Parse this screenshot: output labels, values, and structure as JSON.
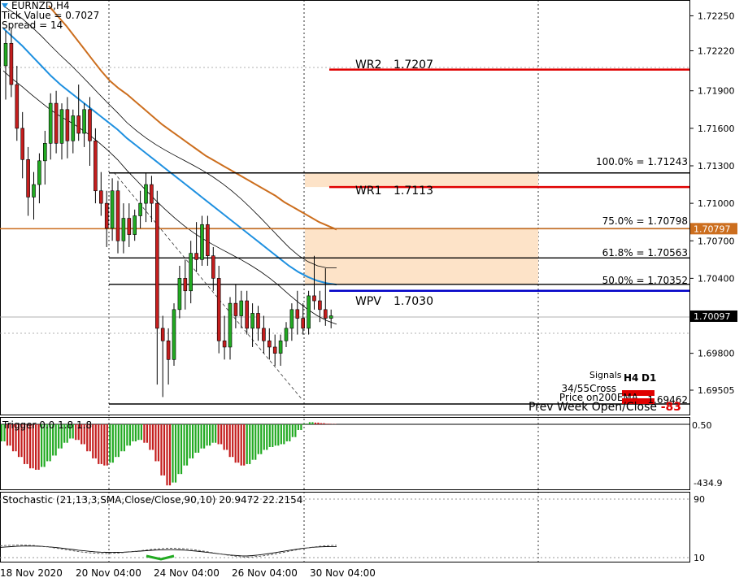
{
  "colors": {
    "bull": "#22aa22",
    "bear": "#c41e1e",
    "pivot_red": "#e00000",
    "pivot_blue": "#0000c8",
    "fib_zone": "#fde3c8",
    "ema_orange": "#cc6e1e",
    "ema_blue": "#1e90e0",
    "price_tag": "#000000"
  },
  "header": {
    "symbol": "EURNZD,H4",
    "tick_value": "Tick Value = 0.7027",
    "spread": "Spread = 14"
  },
  "main_chart": {
    "ylim": [
      1.6931,
      1.7262
    ],
    "y_ticks": [
      "1.72250",
      "1.72220",
      "1.71900",
      "1.71600",
      "1.71300",
      "1.71000",
      "1.70700",
      "1.70400",
      "1.69800",
      "1.69505"
    ],
    "y_tick_values": [
      1.725,
      1.7222,
      1.719,
      1.716,
      1.713,
      1.71,
      1.707,
      1.704,
      1.698,
      1.69505
    ],
    "price_tags": [
      {
        "value": 1.70797,
        "label": "1.70797",
        "kind": "ema"
      },
      {
        "value": 1.70097,
        "label": "1.70097",
        "kind": "current"
      }
    ],
    "pivots": [
      {
        "label": "WR2",
        "value_text": "1.7207",
        "value": 1.7207,
        "color": "red"
      },
      {
        "label": "WR1",
        "value_text": "1.7113",
        "value": 1.7113,
        "color": "red"
      },
      {
        "label": "WPV",
        "value_text": "1.7030",
        "value": 1.703,
        "color": "blue"
      }
    ],
    "fib_levels": [
      {
        "label": "100.0% = 1.71243",
        "value": 1.71243
      },
      {
        "label": "75.0% = 1.70798",
        "value": 1.70798
      },
      {
        "label": "61.8% = 1.70563",
        "value": 1.70563
      },
      {
        "label": "50.0% = 1.70352",
        "value": 1.70352
      }
    ],
    "signals": {
      "title": "Signals",
      "col_h4": "H4",
      "col_d1": "D1",
      "row1": "34/55Cross",
      "row2": "Price on200EMA",
      "row3": "Prev Week Open/Close",
      "prev_week_value": "1.69462",
      "prev_week_diff": "-83"
    }
  },
  "trigger_panel": {
    "title": "Trigger 0.0 1.8 1.8",
    "min_label": "-434.9",
    "max_label": "0.50"
  },
  "stochastic_panel": {
    "title": "Stochastic (21,13,3,SMA,Close/Close,90,10) 20.9472 22.2154",
    "top_label": "90",
    "bottom_label": "10"
  },
  "x_axis": {
    "labels": [
      "18 Nov 2020",
      "20 Nov 04:00",
      "24 Nov 04:00",
      "26 Nov 04:00",
      "30 Nov 04:00"
    ]
  },
  "chart_data": {
    "type": "candlestick",
    "symbol": "EURNZD",
    "timeframe": "H4",
    "ylim": [
      1.6931,
      1.7262
    ],
    "candles": [
      {
        "o": 1.721,
        "h": 1.7238,
        "l": 1.7183,
        "c": 1.7228
      },
      {
        "o": 1.7228,
        "h": 1.724,
        "l": 1.7185,
        "c": 1.7195
      },
      {
        "o": 1.7195,
        "h": 1.721,
        "l": 1.715,
        "c": 1.716
      },
      {
        "o": 1.716,
        "h": 1.7173,
        "l": 1.712,
        "c": 1.7135
      },
      {
        "o": 1.7135,
        "h": 1.7145,
        "l": 1.709,
        "c": 1.7105
      },
      {
        "o": 1.7105,
        "h": 1.7125,
        "l": 1.7087,
        "c": 1.7115
      },
      {
        "o": 1.7115,
        "h": 1.714,
        "l": 1.71,
        "c": 1.7134
      },
      {
        "o": 1.7134,
        "h": 1.7158,
        "l": 1.7115,
        "c": 1.7148
      },
      {
        "o": 1.7148,
        "h": 1.7188,
        "l": 1.7135,
        "c": 1.718
      },
      {
        "o": 1.718,
        "h": 1.719,
        "l": 1.714,
        "c": 1.7148
      },
      {
        "o": 1.7148,
        "h": 1.718,
        "l": 1.7135,
        "c": 1.7175
      },
      {
        "o": 1.7175,
        "h": 1.7185,
        "l": 1.7136,
        "c": 1.715
      },
      {
        "o": 1.715,
        "h": 1.7175,
        "l": 1.714,
        "c": 1.717
      },
      {
        "o": 1.717,
        "h": 1.7195,
        "l": 1.715,
        "c": 1.7156
      },
      {
        "o": 1.7156,
        "h": 1.718,
        "l": 1.7145,
        "c": 1.7175
      },
      {
        "o": 1.7175,
        "h": 1.7185,
        "l": 1.713,
        "c": 1.715
      },
      {
        "o": 1.715,
        "h": 1.716,
        "l": 1.71,
        "c": 1.711
      },
      {
        "o": 1.711,
        "h": 1.7125,
        "l": 1.709,
        "c": 1.71
      },
      {
        "o": 1.71,
        "h": 1.711,
        "l": 1.7065,
        "c": 1.708
      },
      {
        "o": 1.708,
        "h": 1.712,
        "l": 1.707,
        "c": 1.711
      },
      {
        "o": 1.711,
        "h": 1.7118,
        "l": 1.706,
        "c": 1.707
      },
      {
        "o": 1.707,
        "h": 1.71,
        "l": 1.706,
        "c": 1.7088
      },
      {
        "o": 1.7088,
        "h": 1.71,
        "l": 1.7065,
        "c": 1.7075
      },
      {
        "o": 1.7075,
        "h": 1.7095,
        "l": 1.707,
        "c": 1.709
      },
      {
        "o": 1.709,
        "h": 1.711,
        "l": 1.708,
        "c": 1.71
      },
      {
        "o": 1.71,
        "h": 1.7124,
        "l": 1.7085,
        "c": 1.7115
      },
      {
        "o": 1.7115,
        "h": 1.7122,
        "l": 1.7085,
        "c": 1.71
      },
      {
        "o": 1.71,
        "h": 1.711,
        "l": 1.6955,
        "c": 1.7
      },
      {
        "o": 1.7,
        "h": 1.701,
        "l": 1.6945,
        "c": 1.699
      },
      {
        "o": 1.699,
        "h": 1.7,
        "l": 1.6955,
        "c": 1.6975
      },
      {
        "o": 1.6975,
        "h": 1.702,
        "l": 1.697,
        "c": 1.7015
      },
      {
        "o": 1.7015,
        "h": 1.705,
        "l": 1.7008,
        "c": 1.704
      },
      {
        "o": 1.704,
        "h": 1.7055,
        "l": 1.7015,
        "c": 1.703
      },
      {
        "o": 1.703,
        "h": 1.707,
        "l": 1.702,
        "c": 1.706
      },
      {
        "o": 1.706,
        "h": 1.7085,
        "l": 1.7045,
        "c": 1.7055
      },
      {
        "o": 1.7055,
        "h": 1.709,
        "l": 1.705,
        "c": 1.7083
      },
      {
        "o": 1.7083,
        "h": 1.709,
        "l": 1.705,
        "c": 1.7058
      },
      {
        "o": 1.7058,
        "h": 1.7065,
        "l": 1.703,
        "c": 1.704
      },
      {
        "o": 1.704,
        "h": 1.705,
        "l": 1.698,
        "c": 1.699
      },
      {
        "o": 1.699,
        "h": 1.701,
        "l": 1.6975,
        "c": 1.6985
      },
      {
        "o": 1.6985,
        "h": 1.7025,
        "l": 1.6975,
        "c": 1.702
      },
      {
        "o": 1.702,
        "h": 1.7035,
        "l": 1.7,
        "c": 1.701
      },
      {
        "o": 1.701,
        "h": 1.703,
        "l": 1.7,
        "c": 1.7022
      },
      {
        "o": 1.7022,
        "h": 1.703,
        "l": 1.6995,
        "c": 1.7
      },
      {
        "o": 1.7,
        "h": 1.702,
        "l": 1.6985,
        "c": 1.7012
      },
      {
        "o": 1.7012,
        "h": 1.7018,
        "l": 1.699,
        "c": 1.7
      },
      {
        "o": 1.7,
        "h": 1.701,
        "l": 1.698,
        "c": 1.699
      },
      {
        "o": 1.699,
        "h": 1.7,
        "l": 1.6975,
        "c": 1.6985
      },
      {
        "o": 1.6985,
        "h": 1.6995,
        "l": 1.697,
        "c": 1.698
      },
      {
        "o": 1.698,
        "h": 1.6995,
        "l": 1.697,
        "c": 1.699
      },
      {
        "o": 1.699,
        "h": 1.7005,
        "l": 1.6985,
        "c": 1.7
      },
      {
        "o": 1.7,
        "h": 1.702,
        "l": 1.699,
        "c": 1.7015
      },
      {
        "o": 1.7015,
        "h": 1.703,
        "l": 1.6995,
        "c": 1.7008
      },
      {
        "o": 1.7008,
        "h": 1.702,
        "l": 1.6995,
        "c": 1.7
      },
      {
        "o": 1.7,
        "h": 1.703,
        "l": 1.6995,
        "c": 1.7026
      },
      {
        "o": 1.7026,
        "h": 1.7058,
        "l": 1.7015,
        "c": 1.7022
      },
      {
        "o": 1.7022,
        "h": 1.703,
        "l": 1.7005,
        "c": 1.7015
      },
      {
        "o": 1.7015,
        "h": 1.7048,
        "l": 1.7002,
        "c": 1.7008
      },
      {
        "o": 1.7008,
        "h": 1.7015,
        "l": 1.7,
        "c": 1.701
      }
    ],
    "ema_orange": [
      1.7258,
      1.725,
      1.7242,
      1.7233,
      1.7224,
      1.7215,
      1.7206,
      1.7198,
      1.7192,
      1.7187,
      1.7181,
      1.7175,
      1.7169,
      1.7163,
      1.7158,
      1.7153,
      1.7148,
      1.7143,
      1.7138,
      1.7134,
      1.713,
      1.7126,
      1.7122,
      1.7118,
      1.7114,
      1.711,
      1.7106,
      1.7101,
      1.7097,
      1.7093,
      1.7089,
      1.7085,
      1.7082,
      1.7079
    ],
    "ema_blue": [
      1.724,
      1.7233,
      1.7226,
      1.7218,
      1.721,
      1.7202,
      1.7195,
      1.7189,
      1.7183,
      1.7177,
      1.7171,
      1.7165,
      1.7159,
      1.7152,
      1.7146,
      1.714,
      1.7134,
      1.7128,
      1.7122,
      1.7116,
      1.711,
      1.7104,
      1.7098,
      1.7092,
      1.7086,
      1.708,
      1.7074,
      1.7068,
      1.7062,
      1.7056,
      1.705,
      1.7045,
      1.7041,
      1.7038,
      1.7036,
      1.7035
    ],
    "trigger": [
      -120,
      -150,
      -190,
      -230,
      -280,
      -310,
      -320,
      -300,
      -260,
      -220,
      -170,
      -130,
      -100,
      -110,
      -140,
      -190,
      -240,
      -280,
      -290,
      -270,
      -230,
      -190,
      -150,
      -120,
      -110,
      -130,
      -180,
      -260,
      -360,
      -430,
      -410,
      -350,
      -290,
      -240,
      -200,
      -170,
      -150,
      -130,
      -140,
      -180,
      -230,
      -270,
      -290,
      -280,
      -250,
      -210,
      -180,
      -160,
      -150,
      -140,
      -120,
      -90,
      -40,
      5,
      15,
      12,
      8,
      4,
      2
    ]
  }
}
